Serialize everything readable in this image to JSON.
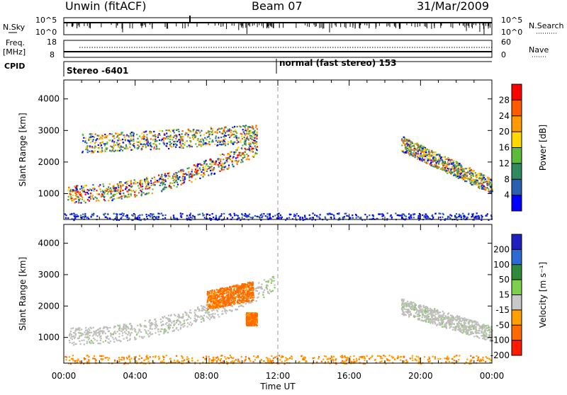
{
  "header": {
    "station": "Unwin (fitACF)",
    "beam": "Beam 07",
    "date": "31/Mar/2009"
  },
  "strips": {
    "nsky_label": "N.Sky",
    "nsearch_label": "N.Search",
    "nave_label": "Nave",
    "freq_label": "Freq.",
    "freq_unit": "[MHz]",
    "cpid_label": "CPID",
    "left_ticks_top": "10^5",
    "left_ticks_bottom": "10^0",
    "right_ticks_top": "10^5",
    "right_ticks_bottom": "10^0",
    "freq_ticks": [
      "18",
      "8"
    ],
    "nave_ticks": [
      "60",
      "0"
    ],
    "cpid_segments": [
      {
        "label": "Stereo -6401",
        "start_hour": 0
      },
      {
        "label": "normal (fast stereo) 153",
        "start_hour": 12
      }
    ]
  },
  "colors": {
    "power_scale": [
      "#0000ff",
      "#2a5fb0",
      "#2f8a5f",
      "#5dbb3c",
      "#ffd800",
      "#ff9a00",
      "#ff5a00",
      "#ff0000"
    ],
    "velocity_scale": [
      "#2020c0",
      "#2e6ad6",
      "#2f8a3a",
      "#7cd04c",
      "#c8c8c8",
      "#ffa000",
      "#ff6a00",
      "#ff1a00"
    ],
    "ground_scatter": "#bdbdb9"
  },
  "chart_data": [
    {
      "type": "heatmap",
      "title": "",
      "xlabel": "Time UT",
      "ylabel": "Slant Range [km]",
      "x_ticks": [
        "00:00",
        "04:00",
        "08:00",
        "12:00",
        "16:00",
        "20:00",
        "00:00"
      ],
      "xlim_hours": [
        0,
        24
      ],
      "y_ticks": [
        1000,
        2000,
        3000,
        4000
      ],
      "ylim_km": [
        180,
        4600
      ],
      "colorbar": {
        "label": "Power [dB]",
        "ticks": [
          4,
          8,
          12,
          16,
          20,
          24,
          28
        ]
      },
      "echo_regions": [
        {
          "name": "main band",
          "hours": [
            0.2,
            10.8
          ],
          "range_km": [
            850,
            1600
          ],
          "peak_power_db": 28
        },
        {
          "name": "upper streak",
          "hours": [
            1.0,
            10.8
          ],
          "range_km": [
            2300,
            3300
          ],
          "peak_power_db": 24
        },
        {
          "name": "late band",
          "hours": [
            18.9,
            24
          ],
          "range_km": [
            900,
            2600
          ],
          "peak_power_db": 24
        },
        {
          "name": "near range",
          "hours": [
            0,
            24
          ],
          "range_km": [
            180,
            400
          ],
          "peak_power_db": 8
        }
      ]
    },
    {
      "type": "heatmap",
      "title": "",
      "xlabel": "Time UT",
      "ylabel": "Slant Range [km]",
      "x_ticks": [
        "00:00",
        "04:00",
        "08:00",
        "12:00",
        "16:00",
        "20:00",
        "00:00"
      ],
      "xlim_hours": [
        0,
        24
      ],
      "y_ticks": [
        1000,
        2000,
        3000,
        4000
      ],
      "ylim_km": [
        180,
        4600
      ],
      "colorbar": {
        "label": "Velocity [m s⁻¹]",
        "ticks": [
          200,
          100,
          50,
          15,
          -15,
          -50,
          -100,
          -200
        ]
      },
      "echo_regions": [
        {
          "name": "ground scatter band",
          "hours": [
            0.2,
            11.8
          ],
          "range_km": [
            900,
            3200
          ],
          "velocity_ms": 0
        },
        {
          "name": "orange streak",
          "hours": [
            8.0,
            10.6
          ],
          "range_km": [
            2000,
            2900
          ],
          "velocity_ms": -50
        },
        {
          "name": "orange patch",
          "hours": [
            10.2,
            10.8
          ],
          "range_km": [
            1400,
            1800
          ],
          "velocity_ms": -50
        },
        {
          "name": "late ground scatter",
          "hours": [
            18.9,
            24
          ],
          "range_km": [
            900,
            2000
          ],
          "velocity_ms": 0
        },
        {
          "name": "near range",
          "hours": [
            0,
            24
          ],
          "range_km": [
            180,
            450
          ],
          "velocity_ms": -50
        }
      ]
    }
  ],
  "footer": {
    "time_label": "Time UT"
  }
}
